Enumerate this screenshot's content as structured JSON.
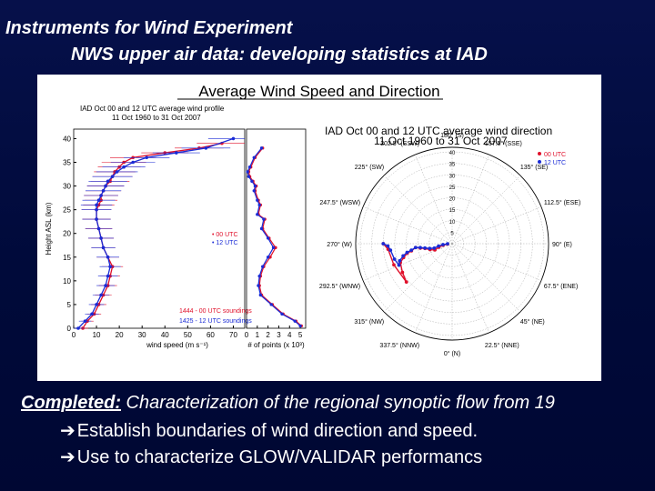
{
  "slide": {
    "title_line1": "Instruments for Wind Experiment",
    "title_line2": "NWS  upper air data: developing statistics at IAD",
    "completed_label": "Completed:",
    "completed_text": " Characterization of the regional synoptic flow from 19",
    "bullets": [
      {
        "icon": "right-arrow-icon",
        "text": "Establish boundaries of wind direction and speed."
      },
      {
        "icon": "right-arrow-icon",
        "text": "Use to characterize GLOW/VALIDAR performancs"
      }
    ]
  },
  "figure": {
    "main_title": "Average Wind Speed and Direction",
    "profile_title_1": "IAD Oct 00 and 12 UTC average wind profile",
    "profile_title_2": "11 Oct 1960 to 31 Oct 2007",
    "polar_title_1": "IAD Oct 00 and 12 UTC average wind direction",
    "polar_title_2": "11 Oct 1960 to 31 Oct 2007",
    "colors": {
      "utc00": "#e0102a",
      "utc12": "#1a2bd6"
    }
  },
  "chart_data": [
    {
      "type": "line",
      "title": "IAD Oct 00 and 12 UTC average wind profile",
      "xlabel": "wind speed (m s⁻¹)",
      "ylabel": "Height ASL (km)",
      "xticks": [
        "0",
        "10",
        "20",
        "30",
        "40",
        "50",
        "60",
        "70"
      ],
      "yticks": [
        "0",
        "5",
        "10",
        "15",
        "20",
        "25",
        "30",
        "35",
        "40"
      ],
      "xlim": [
        0,
        75
      ],
      "ylim": [
        0,
        42
      ],
      "legend": [
        {
          "label": "00 UTC",
          "color": "#e0102a"
        },
        {
          "label": "12 UTC",
          "color": "#1a2bd6"
        }
      ],
      "annotations": [
        "1444 - 00 UTC soundings",
        "1425 - 12 UTC soundings"
      ],
      "series": [
        {
          "name": "00 UTC",
          "x": [
            4,
            6,
            9,
            11,
            13,
            15,
            16,
            17,
            15,
            13,
            12,
            11,
            10,
            10,
            11,
            12,
            12,
            13,
            14,
            16,
            17,
            18,
            20,
            22,
            26,
            40,
            55,
            65
          ],
          "y": [
            0,
            1.5,
            3,
            5,
            7,
            9,
            11,
            13,
            15,
            17,
            19,
            21,
            23,
            25,
            26,
            27,
            28,
            29,
            30,
            31,
            32,
            33,
            34,
            35,
            36,
            37,
            38,
            39
          ]
        },
        {
          "name": "12 UTC",
          "x": [
            2,
            5,
            8,
            10,
            12,
            14,
            15,
            16,
            15,
            13,
            12,
            11,
            10,
            10,
            10,
            11,
            12,
            13,
            14,
            15,
            17,
            19,
            22,
            26,
            32,
            45,
            58,
            70
          ],
          "y": [
            0,
            1.5,
            3,
            5,
            7,
            9,
            11,
            13,
            15,
            17,
            19,
            21,
            23,
            25,
            26,
            27,
            28,
            29,
            30,
            31,
            32,
            33,
            34,
            35,
            36,
            37,
            38,
            40
          ]
        }
      ]
    },
    {
      "type": "line",
      "xlabel": "# of points (x 10³)",
      "xticks": [
        "0",
        "1",
        "2",
        "3",
        "4",
        "5"
      ],
      "xlim": [
        0,
        5.5
      ],
      "ylim": [
        0,
        42
      ],
      "series": [
        {
          "name": "00 UTC",
          "x": [
            5.1,
            4.6,
            3.4,
            2.4,
            1.4,
            1.2,
            1.3,
            1.6,
            2.2,
            2.7,
            2.1,
            1.5,
            1.7,
            1.1,
            1.3,
            1.1,
            0.8,
            0.9,
            0.6,
            0.3,
            0.2,
            0.4,
            0.8,
            1.5
          ],
          "y": [
            0.5,
            1.5,
            3,
            5,
            7,
            9,
            11,
            13,
            15,
            17,
            19,
            21,
            23,
            24,
            26,
            27,
            29,
            30,
            31,
            32,
            33,
            34,
            36,
            38
          ]
        },
        {
          "name": "12 UTC",
          "x": [
            5.0,
            4.5,
            3.3,
            2.3,
            1.3,
            1.1,
            1.2,
            1.5,
            2.0,
            2.5,
            2.0,
            1.4,
            1.6,
            1.0,
            1.2,
            1.0,
            0.7,
            0.8,
            0.5,
            0.2,
            0.1,
            0.3,
            0.7,
            1.4
          ],
          "y": [
            0.5,
            1.5,
            3,
            5,
            7,
            9,
            11,
            13,
            15,
            17,
            19,
            21,
            23,
            24,
            26,
            27,
            29,
            30,
            31,
            32,
            33,
            34,
            36,
            38
          ]
        }
      ]
    },
    {
      "type": "polar",
      "title": "IAD Oct 00 and 12 UTC average wind direction",
      "radial_ticks": [
        "5",
        "10",
        "15",
        "20",
        "25",
        "30",
        "35",
        "40"
      ],
      "angle_labels": [
        "180° (S)",
        "202.5° (SSW)",
        "225° (SW)",
        "247.5° (WSW)",
        "270° (W)",
        "292.5° (WNW)",
        "315° (NW)",
        "337.5° (NNW)",
        "0° (N)",
        "22.5° (NNE)",
        "45° (NE)",
        "67.5° (ENE)",
        "90° (E)",
        "112.5° (ESE)",
        "135° (SE)",
        "157.5° (SSE)"
      ],
      "legend": [
        {
          "label": "00 UTC",
          "color": "#e0102a"
        },
        {
          "label": "12 UTC",
          "color": "#1a2bd6"
        }
      ],
      "series": [
        {
          "name": "00 UTC",
          "direction_deg": [
            275,
            280,
            285,
            290,
            285,
            280,
            278,
            276,
            280,
            282,
            286,
            290,
            300,
            310,
            290,
            275,
            270
          ],
          "height_km": [
            2,
            4,
            6,
            8,
            10,
            12,
            14,
            16,
            18,
            20,
            22,
            24,
            25,
            26,
            27,
            28,
            30
          ]
        },
        {
          "name": "12 UTC",
          "direction_deg": [
            272,
            276,
            280,
            284,
            282,
            279,
            277,
            276,
            279,
            281,
            284,
            288,
            292,
            285,
            276,
            272,
            270
          ],
          "height_km": [
            2,
            4,
            6,
            8,
            10,
            12,
            14,
            16,
            18,
            20,
            22,
            24,
            25,
            26,
            27,
            28,
            30
          ]
        }
      ]
    }
  ]
}
